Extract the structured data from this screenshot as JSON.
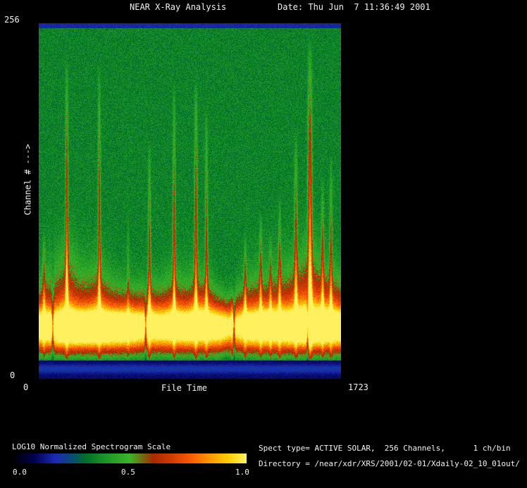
{
  "header": {
    "title": "NEAR X-Ray Analysis",
    "date": "Date: Thu Jun  7 11:36:49 2001"
  },
  "plot": {
    "y_axis": {
      "max_label": "256",
      "min_label": "0",
      "title": "Channel # --->"
    },
    "x_axis": {
      "min_label": "0",
      "title": "File Time",
      "max_label": "1723"
    }
  },
  "colorbar": {
    "title": "LOG10 Normalized Spectrogram Scale",
    "ticks": [
      "0.0",
      "0.5",
      "1.0"
    ]
  },
  "info": {
    "spect_type": "Spect type= ACTIVE SOLAR,  256 Channels,      1 ch/bin",
    "directory": "Directory = /near/xdr/XRS/2001/02-01/Xdaily-02_10_01out/"
  },
  "chart_data": {
    "type": "heatmap",
    "title": "NEAR X-Ray Analysis",
    "xlabel": "File Time",
    "ylabel": "Channel #",
    "x": {
      "range": [
        0,
        1723
      ]
    },
    "y": {
      "range": [
        0,
        256
      ]
    },
    "scale": {
      "label": "LOG10 Normalized Spectrogram Scale",
      "range": [
        0.0,
        1.0
      ]
    },
    "background_intensity": 0.355,
    "palette": [
      [
        0.0,
        "#000000"
      ],
      [
        0.09,
        "#00004f"
      ],
      [
        0.18,
        "#1a2ab4"
      ],
      [
        0.25,
        "#0a4a78"
      ],
      [
        0.31,
        "#006e28"
      ],
      [
        0.4,
        "#1e9628"
      ],
      [
        0.5,
        "#3cb428"
      ],
      [
        0.56,
        "#786410"
      ],
      [
        0.6,
        "#aa2800"
      ],
      [
        0.68,
        "#d23c00"
      ],
      [
        0.76,
        "#fa5a00"
      ],
      [
        0.84,
        "#ff9600"
      ],
      [
        0.92,
        "#ffcc00"
      ],
      [
        1.0,
        "#fff060"
      ]
    ],
    "band": {
      "center": 37,
      "brightness_profile": [
        [
          0.0,
          0.7
        ],
        [
          0.03,
          0.8
        ],
        [
          0.07,
          0.95
        ],
        [
          0.12,
          1.02
        ],
        [
          0.18,
          1.0
        ],
        [
          0.24,
          0.95
        ],
        [
          0.3,
          0.85
        ],
        [
          0.34,
          0.72
        ],
        [
          0.38,
          0.7
        ],
        [
          0.44,
          0.78
        ],
        [
          0.5,
          0.82
        ],
        [
          0.55,
          0.8
        ],
        [
          0.6,
          0.72
        ],
        [
          0.635,
          0.5
        ],
        [
          0.66,
          0.55
        ],
        [
          0.7,
          0.78
        ],
        [
          0.75,
          0.85
        ],
        [
          0.8,
          0.85
        ],
        [
          0.85,
          0.92
        ],
        [
          0.885,
          1.06
        ],
        [
          0.91,
          1.0
        ],
        [
          0.95,
          0.88
        ],
        [
          1.0,
          0.82
        ]
      ],
      "envelope_profile": [
        [
          0.0,
          30
        ],
        [
          0.05,
          42
        ],
        [
          0.1,
          48
        ],
        [
          0.14,
          40
        ],
        [
          0.2,
          36
        ],
        [
          0.27,
          28
        ],
        [
          0.34,
          26
        ],
        [
          0.42,
          30
        ],
        [
          0.5,
          30
        ],
        [
          0.56,
          28
        ],
        [
          0.62,
          18
        ],
        [
          0.66,
          26
        ],
        [
          0.7,
          34
        ],
        [
          0.75,
          38
        ],
        [
          0.8,
          40
        ],
        [
          0.85,
          42
        ],
        [
          0.9,
          48
        ],
        [
          0.94,
          40
        ],
        [
          1.0,
          34
        ]
      ]
    },
    "flares": [
      {
        "t": 30,
        "peak": 110,
        "amp": 0.3,
        "w": 8
      },
      {
        "t": 160,
        "peak": 232,
        "amp": 0.5,
        "w": 8
      },
      {
        "t": 345,
        "peak": 227,
        "amp": 0.42,
        "w": 8
      },
      {
        "t": 510,
        "peak": 121,
        "amp": 0.18,
        "w": 7
      },
      {
        "t": 631,
        "peak": 172,
        "amp": 0.38,
        "w": 8
      },
      {
        "t": 772,
        "peak": 214,
        "amp": 0.42,
        "w": 8
      },
      {
        "t": 896,
        "peak": 219,
        "amp": 0.44,
        "w": 9
      },
      {
        "t": 956,
        "peak": 196,
        "amp": 0.38,
        "w": 8
      },
      {
        "t": 1104,
        "peak": 60,
        "amp": 0.25,
        "w": 7
      },
      {
        "t": 1177,
        "peak": 106,
        "amp": 0.36,
        "w": 8
      },
      {
        "t": 1265,
        "peak": 121,
        "amp": 0.36,
        "w": 8
      },
      {
        "t": 1321,
        "peak": 104,
        "amp": 0.32,
        "w": 7
      },
      {
        "t": 1373,
        "peak": 132,
        "amp": 0.36,
        "w": 8
      },
      {
        "t": 1466,
        "peak": 180,
        "amp": 0.42,
        "w": 9
      },
      {
        "t": 1546,
        "peak": 246,
        "amp": 0.58,
        "w": 12
      },
      {
        "t": 1618,
        "peak": 147,
        "amp": 0.38,
        "w": 8
      },
      {
        "t": 1666,
        "peak": 162,
        "amp": 0.38,
        "w": 8
      }
    ],
    "gaps": [
      80,
      610,
      1113,
      1533
    ]
  }
}
